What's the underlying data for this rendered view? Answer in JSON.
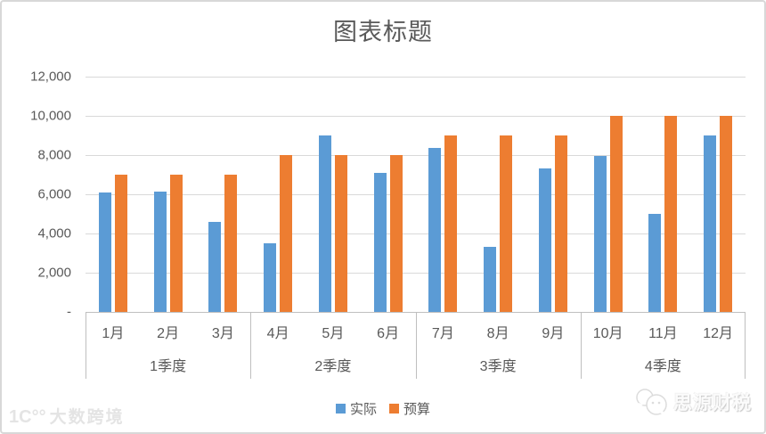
{
  "chart_data": {
    "type": "bar",
    "title": "图表标题",
    "categories": [
      "1月",
      "2月",
      "3月",
      "4月",
      "5月",
      "6月",
      "7月",
      "8月",
      "9月",
      "10月",
      "11月",
      "12月"
    ],
    "group_labels": [
      "1季度",
      "2季度",
      "3季度",
      "4季度"
    ],
    "months_per_group": 3,
    "series": [
      {
        "name": "实际",
        "color": "#5B9BD5",
        "values": [
          6100,
          6150,
          4600,
          3500,
          9000,
          7100,
          8350,
          3300,
          7300,
          7950,
          5000,
          9000
        ]
      },
      {
        "name": "预算",
        "color": "#ED7D31",
        "values": [
          7000,
          7000,
          7000,
          8000,
          8000,
          8000,
          9000,
          9000,
          9000,
          10000,
          10000,
          10000
        ]
      }
    ],
    "ylim": [
      0,
      12000
    ],
    "ytick_step": 2000,
    "ytick_labels": [
      "-",
      "2,000",
      "4,000",
      "6,000",
      "8,000",
      "10,000",
      "12,000"
    ],
    "grid": true,
    "legend_position": "bottom"
  },
  "watermarks": {
    "bottom_left": {
      "logo_mark": "1C°°",
      "brand": "大数跨境"
    },
    "bottom_right": {
      "brand": "思源财税",
      "icon": "chat-bubbles-icon"
    }
  },
  "colors": {
    "actual": "#5B9BD5",
    "budget": "#ED7D31",
    "gridline": "#D9D9D9",
    "axis_line": "#BFBFBF",
    "text": "#595959",
    "panel_border": "#D8D8D8"
  }
}
